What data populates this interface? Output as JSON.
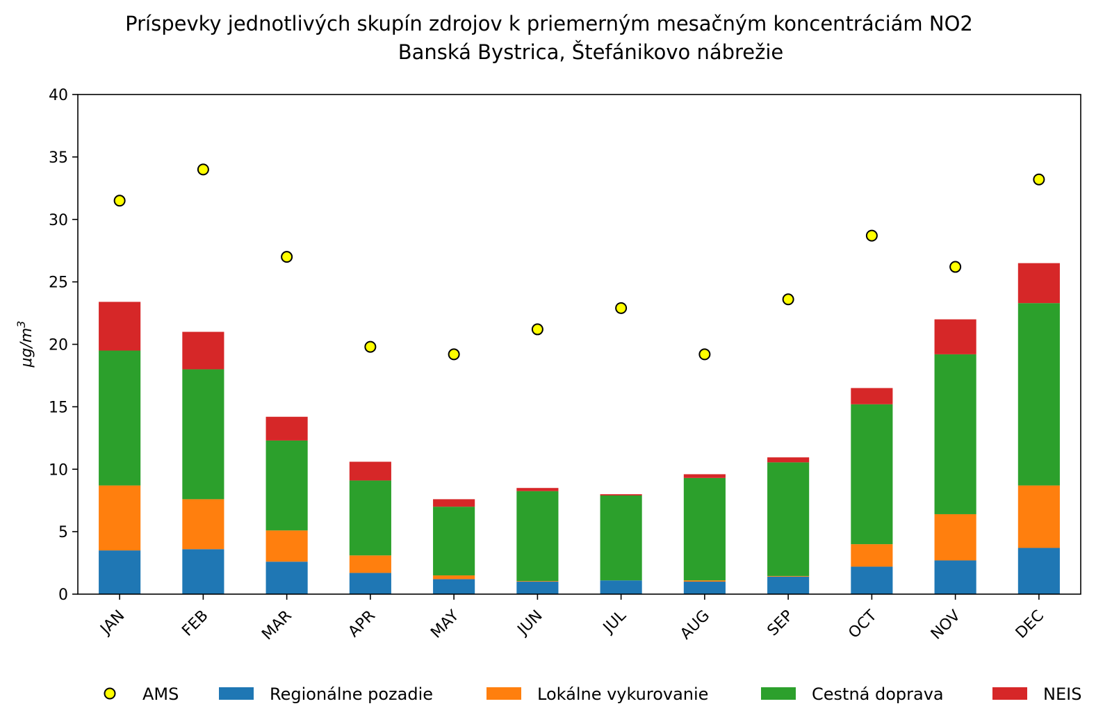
{
  "chart_data": {
    "type": "bar",
    "title": "Príspevky jednotlivých skupín zdrojov k priemerným mesačným koncentráciám NO2",
    "subtitle": "Banská Bystrica, Štefánikovo nábrežie",
    "xlabel": "",
    "ylabel_base": "μg/m",
    "ylabel_exp": "3",
    "ylim": [
      0,
      40
    ],
    "yticks": [
      "0",
      "5",
      "10",
      "15",
      "20",
      "25",
      "30",
      "35",
      "40"
    ],
    "categories": [
      "JAN",
      "FEB",
      "MAR",
      "APR",
      "MAY",
      "JUN",
      "JUL",
      "AUG",
      "SEP",
      "OCT",
      "NOV",
      "DEC"
    ],
    "stacked": true,
    "grid": false,
    "legend_position": "bottom",
    "series": [
      {
        "name": "Regionálne pozadie",
        "color": "#1f77b4",
        "values": [
          3.5,
          3.6,
          2.6,
          1.7,
          1.2,
          1.0,
          1.1,
          1.0,
          1.4,
          2.2,
          2.7,
          3.7
        ]
      },
      {
        "name": "Lokálne vykurovanie",
        "color": "#ff7f0e",
        "values": [
          5.2,
          4.0,
          2.5,
          1.4,
          0.3,
          0.05,
          0.0,
          0.1,
          0.05,
          1.8,
          3.7,
          5.0
        ]
      },
      {
        "name": "Cestná doprava",
        "color": "#2ca02c",
        "values": [
          10.8,
          10.4,
          7.2,
          6.0,
          5.5,
          7.2,
          6.8,
          8.2,
          9.1,
          11.2,
          12.8,
          14.6
        ]
      },
      {
        "name": "NEIS",
        "color": "#d62728",
        "values": [
          3.9,
          3.0,
          1.9,
          1.5,
          0.6,
          0.25,
          0.1,
          0.3,
          0.4,
          1.3,
          2.8,
          3.2
        ]
      }
    ],
    "points": {
      "name": "AMS",
      "color": "#ffff00",
      "values": [
        31.5,
        34.0,
        27.0,
        19.8,
        19.2,
        21.2,
        22.9,
        19.2,
        23.6,
        28.7,
        26.2,
        33.2
      ]
    }
  }
}
